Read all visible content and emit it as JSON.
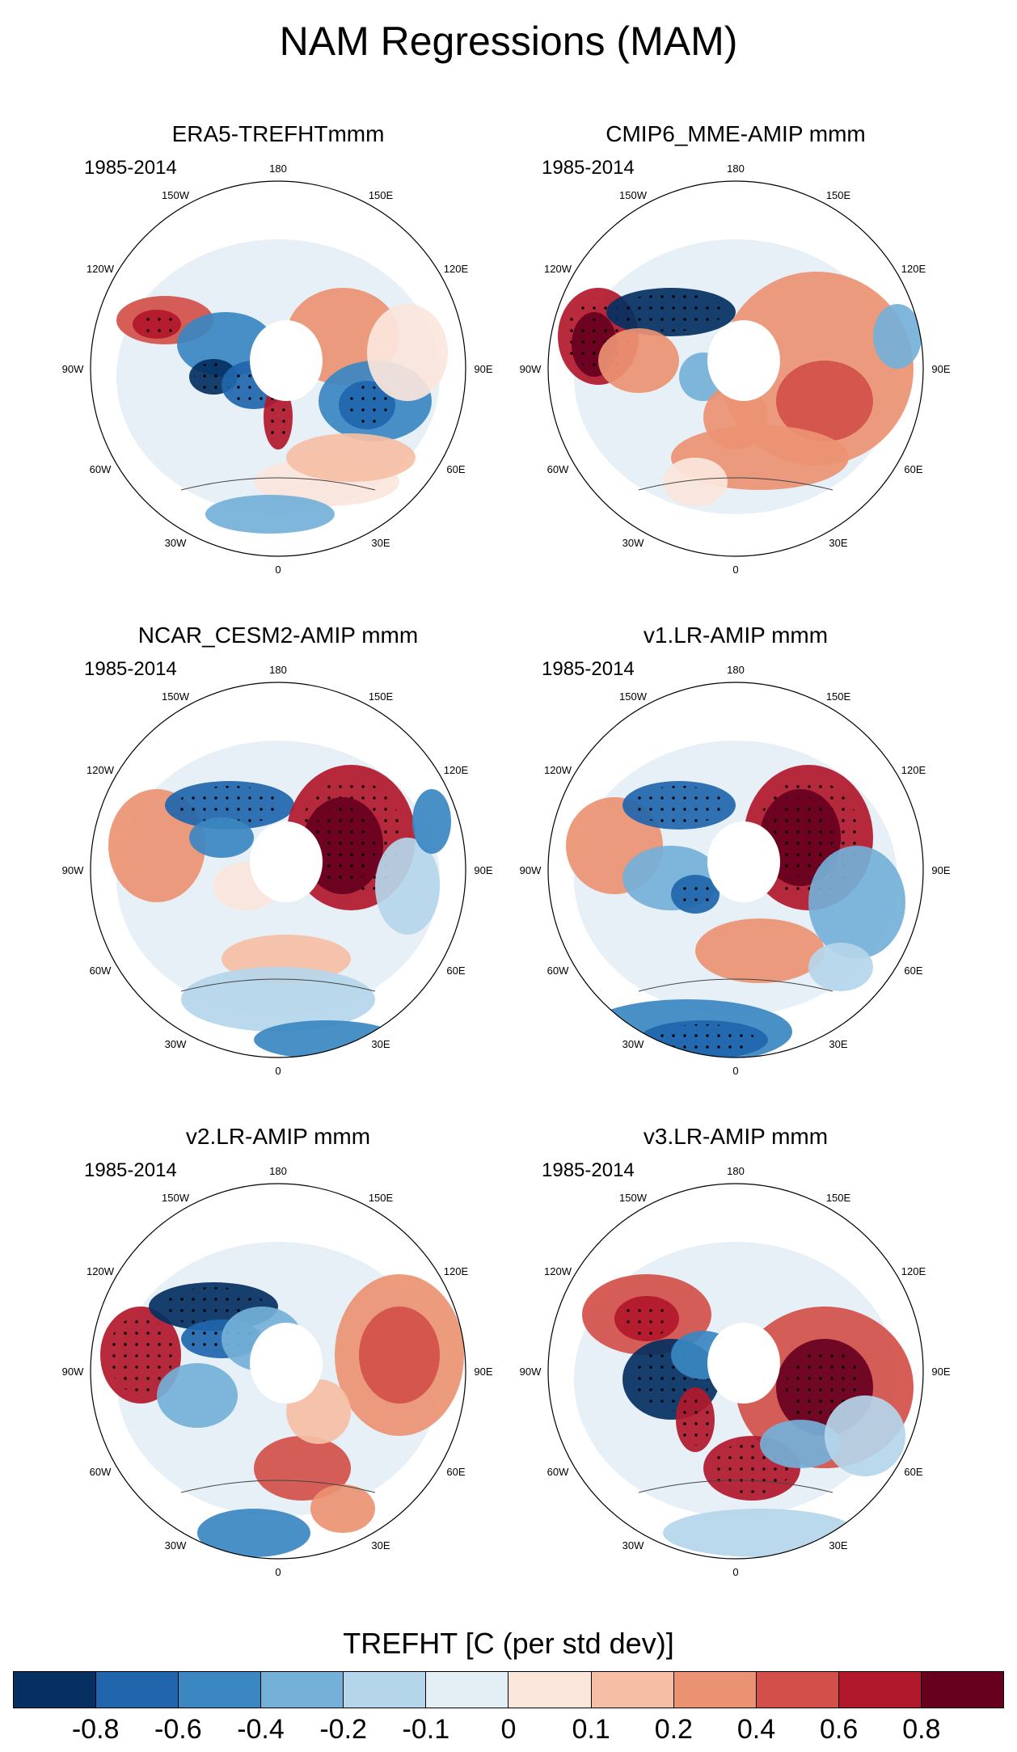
{
  "title": "NAM Regressions (MAM)",
  "panels": [
    {
      "title": "ERA5-TREFHTmmm",
      "period": "1985-2014"
    },
    {
      "title": "CMIP6_MME-AMIP  mmm",
      "period": "1985-2014"
    },
    {
      "title": "NCAR_CESM2-AMIP  mmm",
      "period": "1985-2014"
    },
    {
      "title": "v1.LR-AMIP  mmm",
      "period": "1985-2014"
    },
    {
      "title": "v2.LR-AMIP  mmm",
      "period": "1985-2014"
    },
    {
      "title": "v3.LR-AMIP  mmm",
      "period": "1985-2014"
    }
  ],
  "longitude_labels": {
    "180": "180",
    "150W": "150W",
    "150E": "150E",
    "120W": "120W",
    "120E": "120E",
    "90W": "90W",
    "90E": "90E",
    "60W": "60W",
    "60E": "60E",
    "30W": "30W",
    "30E": "30E",
    "0": "0"
  },
  "colorbar": {
    "title": "TREFHT [C (per std dev)]",
    "labels": [
      "-0.8",
      "-0.6",
      "-0.4",
      "-0.2",
      "-0.1",
      "0",
      "0.1",
      "0.2",
      "0.4",
      "0.6",
      "0.8"
    ],
    "colors": [
      "#053061",
      "#2166ac",
      "#3a87c1",
      "#74b0d8",
      "#b5d6ea",
      "#e4eef5",
      "#fbe6dc",
      "#f6bfa5",
      "#eb9272",
      "#d25049",
      "#b2182b",
      "#67001f"
    ]
  }
}
